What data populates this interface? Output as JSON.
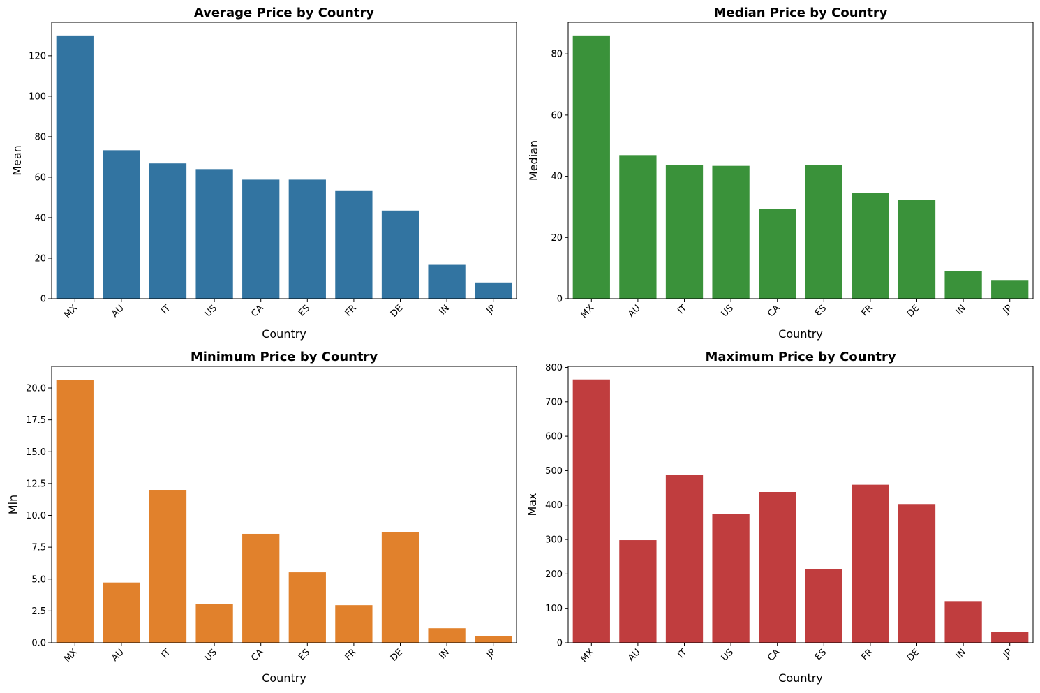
{
  "chart_data": [
    {
      "type": "bar",
      "title": "Average Price by Country",
      "xlabel": "Country",
      "ylabel": "Mean",
      "categories": [
        "MX",
        "AU",
        "IT",
        "US",
        "CA",
        "ES",
        "FR",
        "DE",
        "IN",
        "JP"
      ],
      "values": [
        130,
        73.3,
        66.8,
        64.0,
        58.8,
        58.8,
        53.5,
        43.5,
        16.7,
        8.0
      ],
      "ylim": [
        0,
        136.5
      ],
      "yticks": [
        0,
        20,
        40,
        60,
        80,
        100,
        120
      ],
      "ytick_labels": [
        "0",
        "20",
        "40",
        "60",
        "80",
        "100",
        "120"
      ],
      "color": "#3274a1",
      "grid": false
    },
    {
      "type": "bar",
      "title": "Median Price by Country",
      "xlabel": "Country",
      "ylabel": "Median",
      "categories": [
        "MX",
        "AU",
        "IT",
        "US",
        "CA",
        "ES",
        "FR",
        "DE",
        "IN",
        "JP"
      ],
      "values": [
        86.0,
        46.9,
        43.6,
        43.4,
        29.2,
        43.6,
        34.5,
        32.2,
        9.0,
        6.1
      ],
      "ylim": [
        0,
        90.3
      ],
      "yticks": [
        0,
        20,
        40,
        60,
        80
      ],
      "ytick_labels": [
        "0",
        "20",
        "40",
        "60",
        "80"
      ],
      "color": "#3a923a",
      "grid": false
    },
    {
      "type": "bar",
      "title": "Minimum Price by Country",
      "xlabel": "Country",
      "ylabel": "Min",
      "categories": [
        "MX",
        "AU",
        "IT",
        "US",
        "CA",
        "ES",
        "FR",
        "DE",
        "IN",
        "JP"
      ],
      "values": [
        20.65,
        4.73,
        12.0,
        3.02,
        8.55,
        5.53,
        2.95,
        8.66,
        1.14,
        0.53
      ],
      "ylim": [
        0,
        21.7
      ],
      "yticks": [
        0,
        2.5,
        5.0,
        7.5,
        10.0,
        12.5,
        15.0,
        17.5,
        20.0
      ],
      "ytick_labels": [
        "0.0",
        "2.5",
        "5.0",
        "7.5",
        "10.0",
        "12.5",
        "15.0",
        "17.5",
        "20.0"
      ],
      "color": "#e1812c",
      "grid": false
    },
    {
      "type": "bar",
      "title": "Maximum Price by Country",
      "xlabel": "Country",
      "ylabel": "Max",
      "categories": [
        "MX",
        "AU",
        "IT",
        "US",
        "CA",
        "ES",
        "FR",
        "DE",
        "IN",
        "JP"
      ],
      "values": [
        765,
        298,
        488,
        375,
        438,
        214,
        459,
        403,
        121,
        31
      ],
      "ylim": [
        0,
        803
      ],
      "yticks": [
        0,
        100,
        200,
        300,
        400,
        500,
        600,
        700,
        800
      ],
      "ytick_labels": [
        "0",
        "100",
        "200",
        "300",
        "400",
        "500",
        "600",
        "700",
        "800"
      ],
      "color": "#c03d3e",
      "grid": false
    }
  ]
}
